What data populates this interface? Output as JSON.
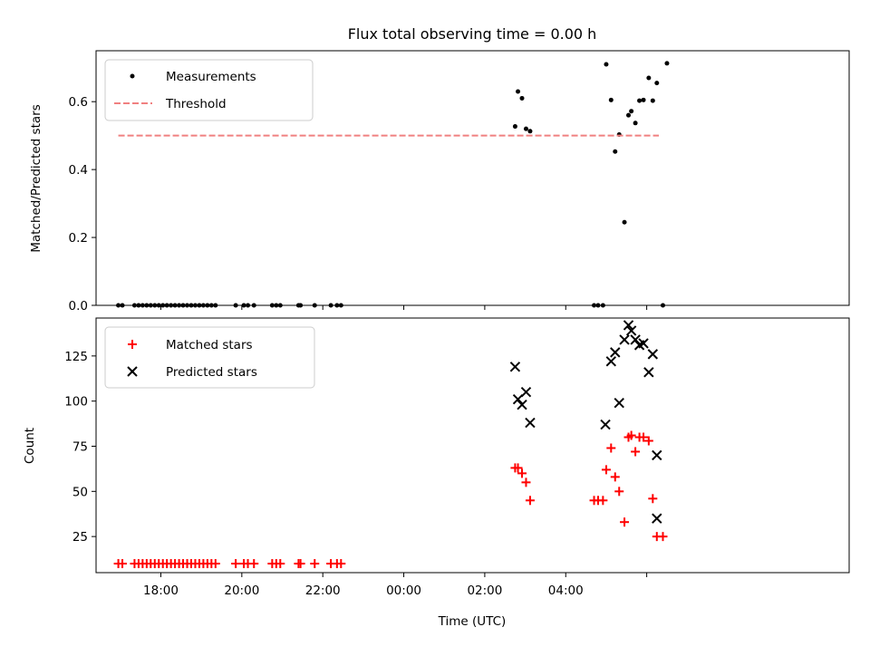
{
  "chart_data": [
    {
      "type": "scatter",
      "title": "Flux total observing time = 0.00 h",
      "ylabel": "Matched/Predicted stars",
      "xlabel": "",
      "x_unit": "hours since 17:00 UTC",
      "xlim": [
        -0.6,
        18.0
      ],
      "ylim": [
        0,
        0.75
      ],
      "xticks": [
        1,
        3,
        5,
        7,
        9,
        11,
        13
      ],
      "xtick_labels": [
        "18:00",
        "20:00",
        "22:00",
        "00:00",
        "02:00",
        "04:00",
        ""
      ],
      "yticks": [
        0,
        0.2,
        0.4,
        0.6
      ],
      "ytick_labels": [
        "0.0",
        "0.2",
        "0.4",
        "0.6"
      ],
      "legend": [
        "Measurements",
        "Threshold"
      ],
      "legend_position": "upper-left",
      "series": [
        {
          "name": "Measurements",
          "marker": "dot",
          "color": "#000000",
          "x": [
            -0.05,
            0.05,
            0.35,
            0.45,
            0.55,
            0.65,
            0.75,
            0.85,
            0.95,
            1.05,
            1.15,
            1.25,
            1.35,
            1.45,
            1.55,
            1.65,
            1.75,
            1.85,
            1.95,
            2.05,
            2.15,
            2.25,
            2.35,
            2.85,
            3.05,
            3.15,
            3.3,
            3.75,
            3.85,
            3.95,
            4.4,
            4.45,
            4.8,
            5.2,
            5.35,
            5.45,
            9.75,
            9.82,
            9.92,
            10.02,
            10.12,
            11.7,
            11.8,
            11.92,
            12.0,
            12.12,
            12.22,
            12.32,
            12.45,
            12.55,
            12.62,
            12.72,
            12.82,
            12.92,
            13.05,
            13.15,
            13.25,
            13.5
          ],
          "y": [
            0,
            0,
            0,
            0,
            0,
            0,
            0,
            0,
            0,
            0,
            0,
            0,
            0,
            0,
            0,
            0,
            0,
            0,
            0,
            0,
            0,
            0,
            0,
            0,
            0,
            0,
            0,
            0,
            0,
            0,
            0,
            0,
            0,
            0,
            0,
            0,
            0.527,
            0.63,
            0.61,
            0.52,
            0.513,
            0,
            0,
            0,
            0.71,
            0.605,
            0.453,
            0.503,
            0.245,
            0.56,
            0.572,
            0.537,
            0.603,
            0.605,
            0.67,
            0.603,
            0.655,
            0.713
          ]
        },
        {
          "name": "Threshold",
          "style": "dashed",
          "color": "#f08080",
          "x": [
            -0.05,
            13.3
          ],
          "y": [
            0.5,
            0.5
          ]
        }
      ],
      "extra_points": [
        {
          "x": 13.4,
          "y": 0
        }
      ]
    },
    {
      "type": "scatter",
      "title": "",
      "xlabel": "Time (UTC)",
      "ylabel": "Count",
      "x_unit": "hours since 17:00 UTC",
      "xlim": [
        -0.6,
        18.0
      ],
      "ylim": [
        5,
        146
      ],
      "xticks": [
        1,
        3,
        5,
        7,
        9,
        11,
        13
      ],
      "xtick_labels": [
        "18:00",
        "20:00",
        "22:00",
        "00:00",
        "02:00",
        "04:00",
        ""
      ],
      "yticks": [
        25,
        50,
        75,
        100,
        125
      ],
      "ytick_labels": [
        "25",
        "50",
        "75",
        "100",
        "125"
      ],
      "legend": [
        "Matched stars",
        "Predicted stars"
      ],
      "legend_position": "upper-left",
      "series": [
        {
          "name": "Matched stars",
          "marker": "plus",
          "color": "#ff0000",
          "x": [
            -0.05,
            0.05,
            0.35,
            0.45,
            0.55,
            0.65,
            0.75,
            0.85,
            0.95,
            1.05,
            1.15,
            1.25,
            1.35,
            1.45,
            1.55,
            1.65,
            1.75,
            1.85,
            1.95,
            2.05,
            2.15,
            2.25,
            2.35,
            2.85,
            3.05,
            3.15,
            3.3,
            3.75,
            3.85,
            3.95,
            4.4,
            4.45,
            4.8,
            5.2,
            5.35,
            5.45,
            9.75,
            9.82,
            9.92,
            10.02,
            10.12,
            11.7,
            11.8,
            11.92,
            12.0,
            12.12,
            12.22,
            12.32,
            12.45,
            12.55,
            12.62,
            12.72,
            12.82,
            12.92,
            13.05,
            13.15,
            13.25,
            13.4
          ],
          "y": [
            10,
            10,
            10,
            10,
            10,
            10,
            10,
            10,
            10,
            10,
            10,
            10,
            10,
            10,
            10,
            10,
            10,
            10,
            10,
            10,
            10,
            10,
            10,
            10,
            10,
            10,
            10,
            10,
            10,
            10,
            10,
            10,
            10,
            10,
            10,
            10,
            63,
            63,
            60,
            55,
            45,
            45,
            45,
            45,
            62,
            74,
            58,
            50,
            33,
            80,
            81,
            72,
            80,
            80,
            78,
            46,
            25,
            25
          ]
        },
        {
          "name": "Predicted stars",
          "marker": "x",
          "color": "#000000",
          "x": [
            9.75,
            9.82,
            9.92,
            10.02,
            10.12,
            11.98,
            12.12,
            12.22,
            12.32,
            12.45,
            12.55,
            12.62,
            12.72,
            12.82,
            12.92,
            13.05,
            13.15,
            13.25
          ],
          "y": [
            119,
            101,
            98,
            105,
            88,
            87,
            122,
            127,
            99,
            134,
            142,
            139,
            134,
            131,
            132,
            116,
            126,
            70
          ]
        }
      ],
      "extra_points": [
        {
          "x": 13.25,
          "y": 35
        }
      ]
    }
  ]
}
